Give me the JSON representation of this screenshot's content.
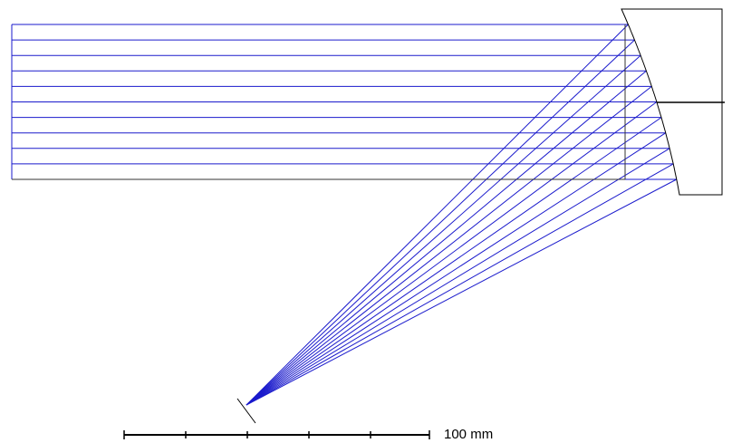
{
  "scale_bar": {
    "label": "100 mm"
  }
}
